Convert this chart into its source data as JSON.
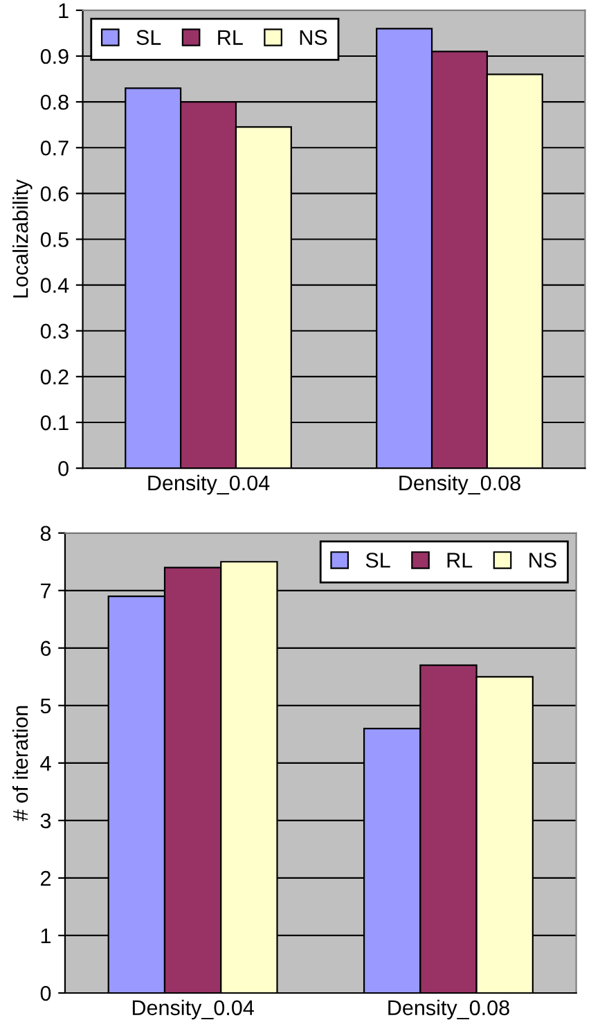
{
  "chart_data": [
    {
      "type": "bar",
      "ylabel": "Localizability",
      "categories": [
        "Density_0.04",
        "Density_0.08"
      ],
      "series": [
        {
          "name": "SL",
          "color": "#9999ff",
          "values": [
            0.83,
            0.96
          ]
        },
        {
          "name": "RL",
          "color": "#993366",
          "values": [
            0.8,
            0.91
          ]
        },
        {
          "name": "NS",
          "color": "#ffffcc",
          "values": [
            0.745,
            0.86
          ]
        }
      ],
      "ylim": [
        0,
        1
      ],
      "yticks": [
        0,
        0.1,
        0.2,
        0.3,
        0.4,
        0.5,
        0.6,
        0.7,
        0.8,
        0.9,
        1
      ],
      "grid": "y",
      "legend": "top left"
    },
    {
      "type": "bar",
      "ylabel": "# of iteration",
      "categories": [
        "Density_0.04",
        "Density_0.08"
      ],
      "series": [
        {
          "name": "SL",
          "color": "#9999ff",
          "values": [
            6.9,
            4.6
          ]
        },
        {
          "name": "RL",
          "color": "#993366",
          "values": [
            7.4,
            5.7
          ]
        },
        {
          "name": "NS",
          "color": "#ffffcc",
          "values": [
            7.5,
            5.5
          ]
        }
      ],
      "ylim": [
        0,
        8
      ],
      "yticks": [
        0,
        1,
        2,
        3,
        4,
        5,
        6,
        7,
        8
      ],
      "grid": "y",
      "legend": "top right"
    }
  ]
}
